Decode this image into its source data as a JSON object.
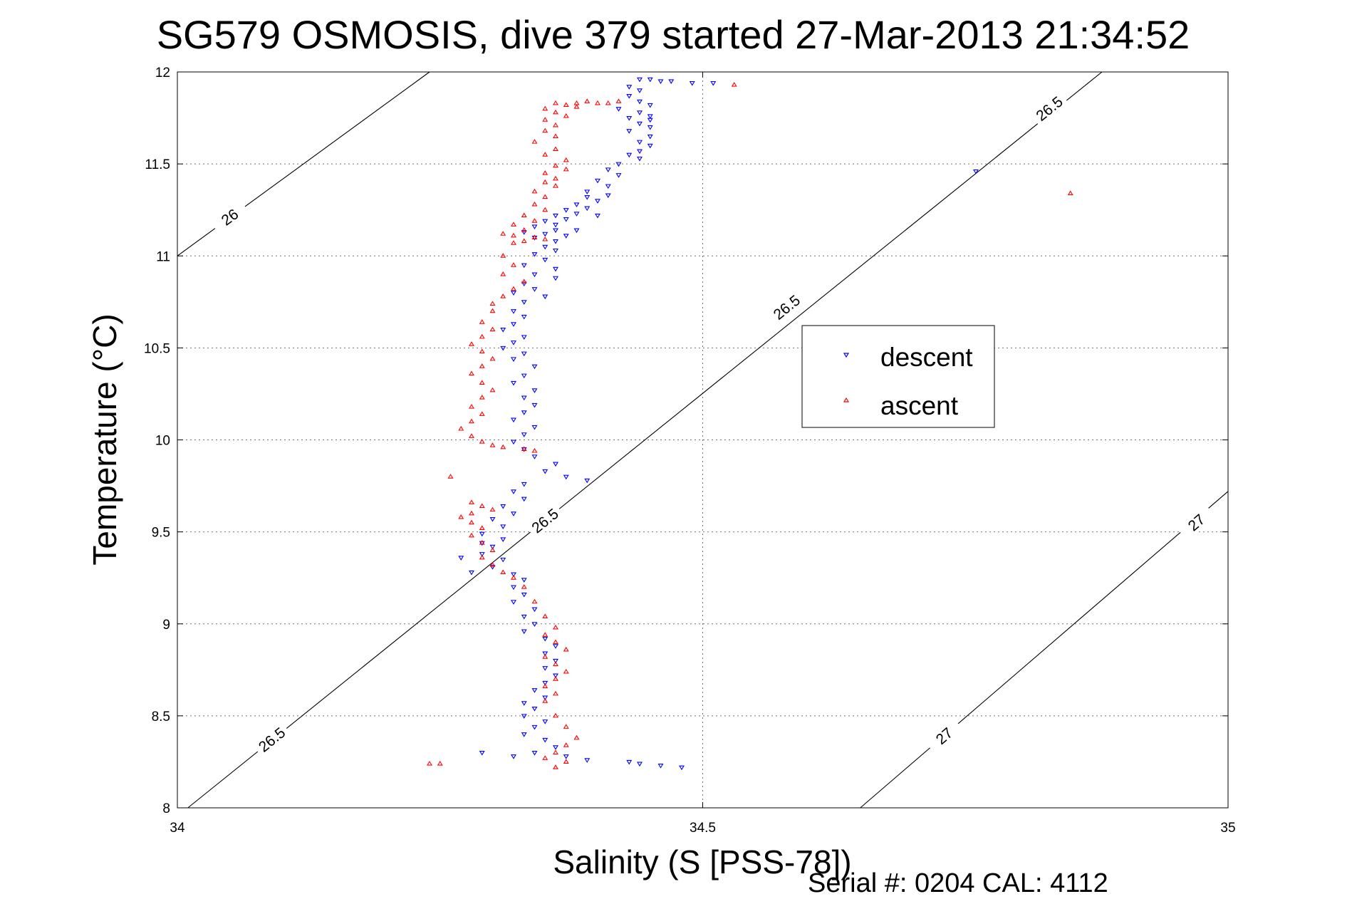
{
  "chart_data": {
    "type": "scatter",
    "title": "SG579 OSMOSIS, dive 379 started 27-Mar-2013 21:34:52",
    "xlabel": "Salinity (S [PSS-78])",
    "ylabel": "Temperature (°C)",
    "xlim": [
      34,
      35
    ],
    "ylim": [
      8,
      12
    ],
    "x_ticks": [
      "34",
      "34.5",
      "35"
    ],
    "y_ticks": [
      "8",
      "8.5",
      "9",
      "9.5",
      "10",
      "10.5",
      "11",
      "11.5",
      "12"
    ],
    "grid": true,
    "legend_position": "center-right",
    "footer": "Serial #: 0204  CAL: 4112",
    "series": [
      {
        "name": "descent",
        "marker": "triangle-down",
        "color": "#0000ff",
        "points": [
          [
            34.45,
            11.96
          ],
          [
            34.44,
            11.96
          ],
          [
            34.46,
            11.95
          ],
          [
            34.47,
            11.95
          ],
          [
            34.49,
            11.94
          ],
          [
            34.51,
            11.94
          ],
          [
            34.43,
            11.92
          ],
          [
            34.44,
            11.9
          ],
          [
            34.43,
            11.87
          ],
          [
            34.44,
            11.84
          ],
          [
            34.45,
            11.82
          ],
          [
            34.42,
            11.8
          ],
          [
            34.44,
            11.78
          ],
          [
            34.45,
            11.76
          ],
          [
            34.43,
            11.75
          ],
          [
            34.45,
            11.74
          ],
          [
            34.44,
            11.72
          ],
          [
            34.45,
            11.7
          ],
          [
            34.43,
            11.68
          ],
          [
            34.45,
            11.65
          ],
          [
            34.44,
            11.62
          ],
          [
            34.45,
            11.6
          ],
          [
            34.44,
            11.57
          ],
          [
            34.43,
            11.55
          ],
          [
            34.44,
            11.53
          ],
          [
            34.42,
            11.5
          ],
          [
            34.41,
            11.47
          ],
          [
            34.42,
            11.44
          ],
          [
            34.4,
            11.41
          ],
          [
            34.41,
            11.38
          ],
          [
            34.39,
            11.35
          ],
          [
            34.41,
            11.33
          ],
          [
            34.39,
            11.32
          ],
          [
            34.4,
            11.3
          ],
          [
            34.38,
            11.28
          ],
          [
            34.39,
            11.26
          ],
          [
            34.37,
            11.25
          ],
          [
            34.38,
            11.23
          ],
          [
            34.36,
            11.22
          ],
          [
            34.37,
            11.2
          ],
          [
            34.35,
            11.19
          ],
          [
            34.36,
            11.17
          ],
          [
            34.34,
            11.16
          ],
          [
            34.36,
            11.14
          ],
          [
            34.33,
            11.13
          ],
          [
            34.35,
            11.12
          ],
          [
            34.37,
            11.11
          ],
          [
            34.38,
            11.14
          ],
          [
            34.4,
            11.22
          ],
          [
            34.34,
            11.1
          ],
          [
            34.36,
            11.08
          ],
          [
            34.35,
            11.05
          ],
          [
            34.36,
            11.03
          ],
          [
            34.34,
            11.01
          ],
          [
            34.35,
            10.98
          ],
          [
            34.33,
            10.95
          ],
          [
            34.36,
            10.93
          ],
          [
            34.34,
            10.9
          ],
          [
            34.36,
            10.88
          ],
          [
            34.33,
            10.85
          ],
          [
            34.34,
            10.82
          ],
          [
            34.32,
            10.8
          ],
          [
            34.35,
            10.78
          ],
          [
            34.33,
            10.75
          ],
          [
            34.32,
            10.7
          ],
          [
            34.33,
            10.67
          ],
          [
            34.32,
            10.63
          ],
          [
            34.31,
            10.6
          ],
          [
            34.33,
            10.56
          ],
          [
            34.32,
            10.53
          ],
          [
            34.31,
            10.5
          ],
          [
            34.33,
            10.47
          ],
          [
            34.32,
            10.44
          ],
          [
            34.34,
            10.4
          ],
          [
            34.33,
            10.35
          ],
          [
            34.32,
            10.31
          ],
          [
            34.34,
            10.27
          ],
          [
            34.33,
            10.23
          ],
          [
            34.34,
            10.19
          ],
          [
            34.33,
            10.15
          ],
          [
            34.32,
            10.11
          ],
          [
            34.34,
            10.07
          ],
          [
            34.33,
            10.03
          ],
          [
            34.32,
            9.99
          ],
          [
            34.33,
            9.95
          ],
          [
            34.34,
            9.91
          ],
          [
            34.36,
            9.87
          ],
          [
            34.35,
            9.83
          ],
          [
            34.37,
            9.8
          ],
          [
            34.39,
            9.78
          ],
          [
            34.33,
            9.76
          ],
          [
            34.32,
            9.72
          ],
          [
            34.33,
            9.68
          ],
          [
            34.31,
            9.64
          ],
          [
            34.32,
            9.6
          ],
          [
            34.3,
            9.57
          ],
          [
            34.31,
            9.53
          ],
          [
            34.29,
            9.49
          ],
          [
            34.31,
            9.46
          ],
          [
            34.3,
            9.42
          ],
          [
            34.29,
            9.38
          ],
          [
            34.31,
            9.35
          ],
          [
            34.3,
            9.31
          ],
          [
            34.32,
            9.27
          ],
          [
            34.33,
            9.24
          ],
          [
            34.32,
            9.2
          ],
          [
            34.33,
            9.16
          ],
          [
            34.32,
            9.12
          ],
          [
            34.34,
            9.08
          ],
          [
            34.33,
            9.04
          ],
          [
            34.34,
            9.0
          ],
          [
            34.33,
            8.96
          ],
          [
            34.35,
            8.92
          ],
          [
            34.36,
            8.88
          ],
          [
            34.35,
            8.84
          ],
          [
            34.36,
            8.8
          ],
          [
            34.35,
            8.76
          ],
          [
            34.36,
            8.72
          ],
          [
            34.35,
            8.68
          ],
          [
            34.34,
            8.64
          ],
          [
            34.35,
            8.6
          ],
          [
            34.33,
            8.57
          ],
          [
            34.34,
            8.54
          ],
          [
            34.33,
            8.5
          ],
          [
            34.35,
            8.47
          ],
          [
            34.34,
            8.44
          ],
          [
            34.33,
            8.4
          ],
          [
            34.35,
            8.37
          ],
          [
            34.36,
            8.33
          ],
          [
            34.34,
            8.3
          ],
          [
            34.37,
            8.28
          ],
          [
            34.39,
            8.26
          ],
          [
            34.43,
            8.25
          ],
          [
            34.44,
            8.24
          ],
          [
            34.46,
            8.23
          ],
          [
            34.48,
            8.22
          ],
          [
            34.32,
            8.28
          ],
          [
            34.29,
            8.3
          ],
          [
            34.27,
            9.36
          ],
          [
            34.29,
            9.44
          ],
          [
            34.28,
            9.28
          ],
          [
            34.76,
            11.46
          ]
        ]
      },
      {
        "name": "ascent",
        "marker": "triangle-up",
        "color": "#ff0000",
        "points": [
          [
            34.53,
            11.93
          ],
          [
            34.42,
            11.84
          ],
          [
            34.41,
            11.83
          ],
          [
            34.4,
            11.83
          ],
          [
            34.39,
            11.84
          ],
          [
            34.38,
            11.83
          ],
          [
            34.37,
            11.82
          ],
          [
            34.36,
            11.83
          ],
          [
            34.38,
            11.81
          ],
          [
            34.35,
            11.8
          ],
          [
            34.36,
            11.78
          ],
          [
            34.37,
            11.76
          ],
          [
            34.35,
            11.74
          ],
          [
            34.36,
            11.71
          ],
          [
            34.35,
            11.68
          ],
          [
            34.36,
            11.65
          ],
          [
            34.34,
            11.62
          ],
          [
            34.36,
            11.58
          ],
          [
            34.35,
            11.55
          ],
          [
            34.37,
            11.52
          ],
          [
            34.36,
            11.49
          ],
          [
            34.37,
            11.47
          ],
          [
            34.35,
            11.45
          ],
          [
            34.36,
            11.42
          ],
          [
            34.35,
            11.4
          ],
          [
            34.36,
            11.38
          ],
          [
            34.34,
            11.35
          ],
          [
            34.35,
            11.32
          ],
          [
            34.34,
            11.28
          ],
          [
            34.35,
            11.25
          ],
          [
            34.33,
            11.22
          ],
          [
            34.34,
            11.19
          ],
          [
            34.32,
            11.17
          ],
          [
            34.33,
            11.14
          ],
          [
            34.31,
            11.12
          ],
          [
            34.32,
            11.11
          ],
          [
            34.34,
            11.1
          ],
          [
            34.35,
            11.09
          ],
          [
            34.33,
            11.08
          ],
          [
            34.32,
            11.07
          ],
          [
            34.31,
            11.0
          ],
          [
            34.32,
            10.95
          ],
          [
            34.31,
            10.9
          ],
          [
            34.33,
            10.86
          ],
          [
            34.32,
            10.82
          ],
          [
            34.31,
            10.78
          ],
          [
            34.3,
            10.74
          ],
          [
            34.3,
            10.7
          ],
          [
            34.29,
            10.64
          ],
          [
            34.3,
            10.6
          ],
          [
            34.29,
            10.56
          ],
          [
            34.28,
            10.52
          ],
          [
            34.29,
            10.48
          ],
          [
            34.3,
            10.44
          ],
          [
            34.29,
            10.4
          ],
          [
            34.28,
            10.36
          ],
          [
            34.29,
            10.31
          ],
          [
            34.3,
            10.27
          ],
          [
            34.29,
            10.23
          ],
          [
            34.28,
            10.18
          ],
          [
            34.29,
            10.14
          ],
          [
            34.28,
            10.1
          ],
          [
            34.27,
            10.06
          ],
          [
            34.28,
            10.02
          ],
          [
            34.29,
            9.99
          ],
          [
            34.3,
            9.97
          ],
          [
            34.31,
            9.96
          ],
          [
            34.33,
            9.95
          ],
          [
            34.34,
            9.94
          ],
          [
            34.26,
            9.8
          ],
          [
            34.28,
            9.66
          ],
          [
            34.29,
            9.64
          ],
          [
            34.3,
            9.62
          ],
          [
            34.28,
            9.6
          ],
          [
            34.27,
            9.58
          ],
          [
            34.28,
            9.55
          ],
          [
            34.29,
            9.52
          ],
          [
            34.28,
            9.48
          ],
          [
            34.29,
            9.44
          ],
          [
            34.3,
            9.4
          ],
          [
            34.29,
            9.36
          ],
          [
            34.3,
            9.32
          ],
          [
            34.31,
            9.28
          ],
          [
            34.32,
            9.25
          ],
          [
            34.33,
            9.2
          ],
          [
            34.34,
            9.12
          ],
          [
            34.35,
            9.04
          ],
          [
            34.36,
            8.98
          ],
          [
            34.35,
            8.94
          ],
          [
            34.36,
            8.9
          ],
          [
            34.37,
            8.86
          ],
          [
            34.35,
            8.82
          ],
          [
            34.36,
            8.78
          ],
          [
            34.37,
            8.74
          ],
          [
            34.36,
            8.7
          ],
          [
            34.35,
            8.66
          ],
          [
            34.36,
            8.62
          ],
          [
            34.35,
            8.58
          ],
          [
            34.36,
            8.5
          ],
          [
            34.37,
            8.44
          ],
          [
            34.38,
            8.38
          ],
          [
            34.37,
            8.34
          ],
          [
            34.36,
            8.3
          ],
          [
            34.35,
            8.27
          ],
          [
            34.37,
            8.25
          ],
          [
            34.36,
            8.22
          ],
          [
            34.24,
            8.24
          ],
          [
            34.25,
            8.24
          ],
          [
            34.85,
            11.34
          ]
        ]
      }
    ],
    "contours": [
      {
        "label": "26",
        "x": [
          34.0,
          34.24
        ],
        "y": [
          11.0,
          12.0
        ],
        "label_at": [
          34.05,
          11.21
        ]
      },
      {
        "label": "26.5",
        "x": [
          34.01,
          34.88
        ],
        "y": [
          8.0,
          12.0
        ],
        "label_at": [
          34.09,
          8.37
        ],
        "label_at_2": [
          34.35,
          9.56
        ]
      },
      {
        "label": "26.5",
        "x": [
          34.01,
          34.88
        ],
        "y": [
          8.0,
          12.0
        ],
        "label_at": [
          34.58,
          10.72
        ],
        "label_at_2": [
          34.83,
          11.8
        ]
      },
      {
        "label": "27",
        "x": [
          34.65,
          35.0
        ],
        "y": [
          8.0,
          9.72
        ],
        "label_at": [
          34.73,
          8.39
        ],
        "label_at_2": [
          34.97,
          9.55
        ]
      }
    ]
  }
}
